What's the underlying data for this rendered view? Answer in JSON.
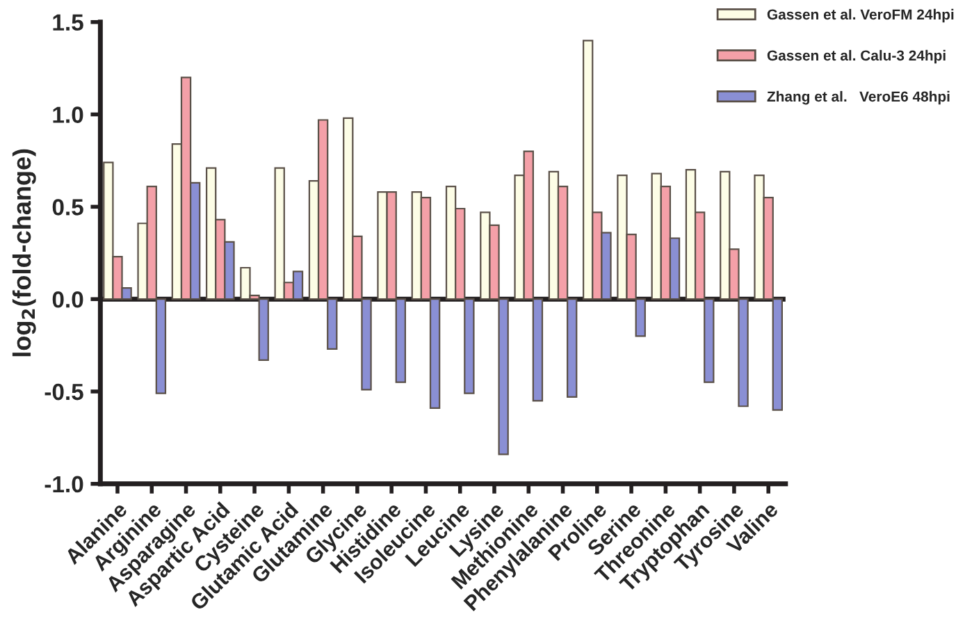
{
  "chart_data": {
    "type": "bar",
    "ylabel": "log$_{2}$(fold-change)",
    "categories": [
      "Alanine",
      "Arginine",
      "Asparagine",
      "Aspartic Acid",
      "Cysteine",
      "Glutamic Acid",
      "Glutamine",
      "Glycine",
      "Histidine",
      "Isoleucine",
      "Leucine",
      "Lysine",
      "Methionine",
      "Phenylalanine",
      "Proline",
      "Serine",
      "Threonine",
      "Tryptophan",
      "Tyrosine",
      "Valine"
    ],
    "series": [
      {
        "name": "Gassen et al. VeroFM 24hpi",
        "color": "#fdfde6",
        "values": [
          0.74,
          0.41,
          0.84,
          0.71,
          0.17,
          0.71,
          0.64,
          0.98,
          0.58,
          0.58,
          0.61,
          0.47,
          0.67,
          0.69,
          1.4,
          0.67,
          0.68,
          0.7,
          0.69,
          0.67
        ]
      },
      {
        "name": "Gassen et al. Calu-3 24hpi",
        "color": "#f4a0a8",
        "values": [
          0.23,
          0.61,
          1.2,
          0.43,
          0.02,
          0.09,
          0.97,
          0.34,
          0.58,
          0.55,
          0.49,
          0.4,
          0.8,
          0.61,
          0.47,
          0.35,
          0.61,
          0.47,
          0.27,
          0.55
        ]
      },
      {
        "name": "Zhang et al.   VeroE6 48hpi",
        "color": "#8a8fd4",
        "values": [
          0.06,
          -0.51,
          0.63,
          0.31,
          -0.33,
          0.15,
          -0.27,
          -0.49,
          -0.45,
          -0.59,
          -0.51,
          -0.84,
          -0.55,
          -0.53,
          0.36,
          -0.2,
          0.33,
          -0.45,
          -0.58,
          -0.6
        ]
      }
    ],
    "ylim": [
      -1.0,
      1.5
    ],
    "yticks": [
      {
        "value": -1.0,
        "label": "-1.0"
      },
      {
        "value": -0.5,
        "label": "-0.5"
      },
      {
        "value": 0.0,
        "label": "0.0"
      },
      {
        "value": 0.5,
        "label": "0.5"
      },
      {
        "value": 1.0,
        "label": "1.0"
      },
      {
        "value": 1.5,
        "label": "1.5"
      }
    ],
    "ref_lines": [
      {
        "axis": "y",
        "value": 0,
        "color": "#231f20"
      }
    ],
    "legend": "top right",
    "grid": false
  }
}
